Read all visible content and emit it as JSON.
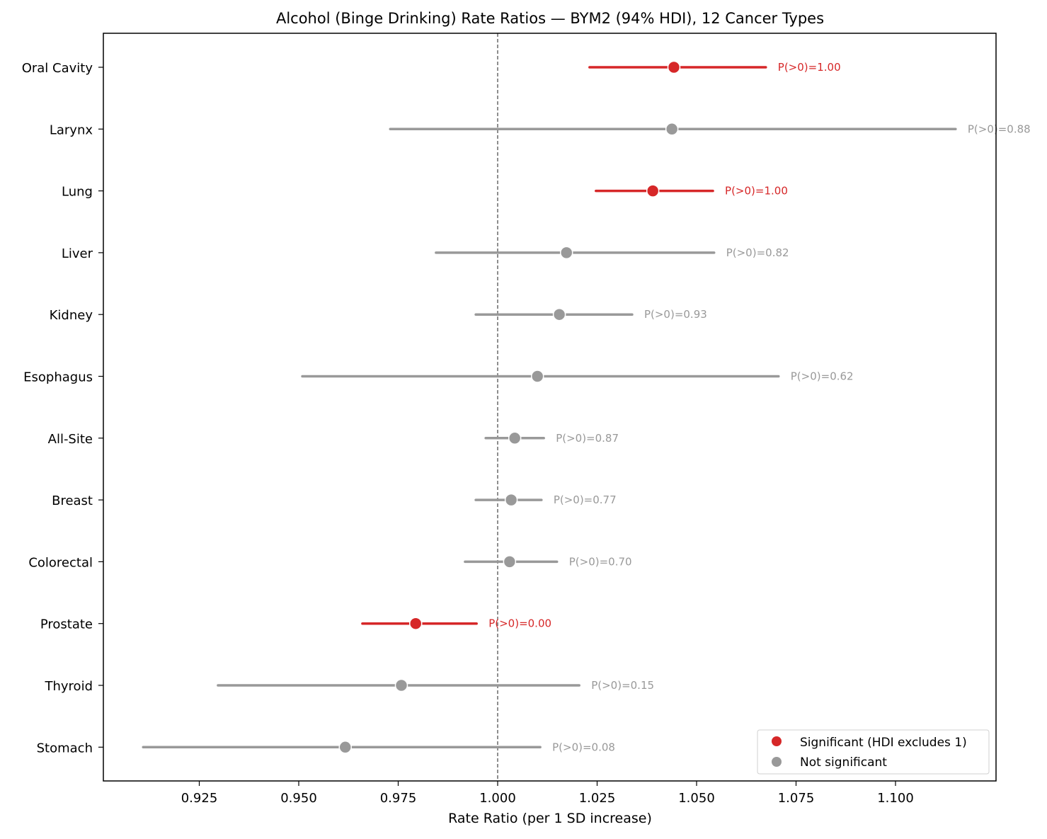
{
  "chart_data": {
    "type": "forest",
    "title": "Alcohol (Binge Drinking) Rate Ratios — BYM2 (94% HDI), 12 Cancer Types",
    "xlabel": "Rate Ratio (per 1 SD increase)",
    "ylabel": "",
    "xlim": [
      0.901,
      1.125
    ],
    "xticks": [
      0.925,
      0.95,
      0.975,
      1.0,
      1.025,
      1.05,
      1.075,
      1.1
    ],
    "xtick_labels": [
      "0.925",
      "0.950",
      "0.975",
      "1.000",
      "1.025",
      "1.050",
      "1.075",
      "1.100"
    ],
    "reference_line": 1.0,
    "grid": false,
    "legend_position": "lower right",
    "legend": [
      {
        "label": "Significant (HDI excludes 1)",
        "color": "#d62728"
      },
      {
        "label": "Not significant",
        "color": "#999999"
      }
    ],
    "categories": [
      "Oral Cavity",
      "Larynx",
      "Lung",
      "Liver",
      "Kidney",
      "Esophagus",
      "All-Site",
      "Breast",
      "Colorectal",
      "Prostate",
      "Thyroid",
      "Stomach"
    ],
    "rows": [
      {
        "label": "Oral Cavity",
        "estimate": 1.0443,
        "lower": 1.0231,
        "upper": 1.0674,
        "p_gt_0": "P(>0)=1.00",
        "significant": true
      },
      {
        "label": "Larynx",
        "estimate": 1.0438,
        "lower": 0.973,
        "upper": 1.1151,
        "p_gt_0": "P(>0)=0.88",
        "significant": false
      },
      {
        "label": "Lung",
        "estimate": 1.039,
        "lower": 1.0247,
        "upper": 1.0541,
        "p_gt_0": "P(>0)=1.00",
        "significant": true
      },
      {
        "label": "Liver",
        "estimate": 1.0173,
        "lower": 0.9845,
        "upper": 1.0544,
        "p_gt_0": "P(>0)=0.82",
        "significant": false
      },
      {
        "label": "Kidney",
        "estimate": 1.0155,
        "lower": 0.9945,
        "upper": 1.0338,
        "p_gt_0": "P(>0)=0.93",
        "significant": false
      },
      {
        "label": "Esophagus",
        "estimate": 1.01,
        "lower": 0.9509,
        "upper": 1.0706,
        "p_gt_0": "P(>0)=0.62",
        "significant": false
      },
      {
        "label": "All-Site",
        "estimate": 1.0043,
        "lower": 0.997,
        "upper": 1.0116,
        "p_gt_0": "P(>0)=0.87",
        "significant": false
      },
      {
        "label": "Breast",
        "estimate": 1.0034,
        "lower": 0.9945,
        "upper": 1.011,
        "p_gt_0": "P(>0)=0.77",
        "significant": false
      },
      {
        "label": "Colorectal",
        "estimate": 1.003,
        "lower": 0.9918,
        "upper": 1.0149,
        "p_gt_0": "P(>0)=0.70",
        "significant": false
      },
      {
        "label": "Prostate",
        "estimate": 0.9794,
        "lower": 0.966,
        "upper": 0.9947,
        "p_gt_0": "P(>0)=0.00",
        "significant": true
      },
      {
        "label": "Thyroid",
        "estimate": 0.9758,
        "lower": 0.9297,
        "upper": 1.0205,
        "p_gt_0": "P(>0)=0.15",
        "significant": false
      },
      {
        "label": "Stomach",
        "estimate": 0.9617,
        "lower": 0.9109,
        "upper": 1.0107,
        "p_gt_0": "P(>0)=0.08",
        "significant": false
      }
    ],
    "colors": {
      "significant": "#d62728",
      "not_significant": "#999999"
    }
  }
}
